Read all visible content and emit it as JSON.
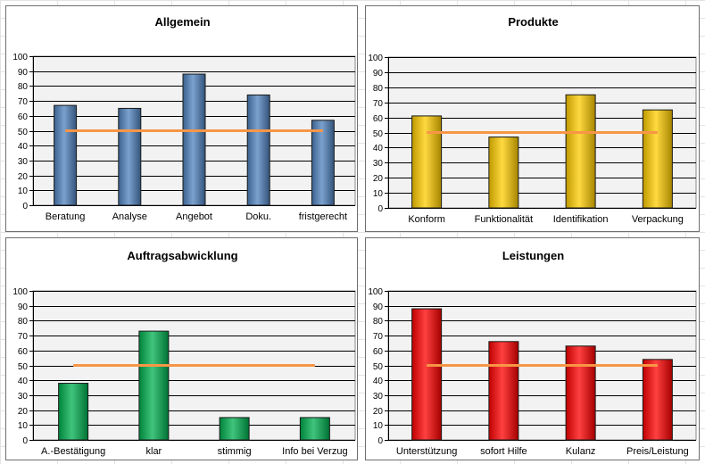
{
  "colors": {
    "blue": "#4f81bd",
    "yellow": "#ffcc00",
    "green": "#00b050",
    "red": "#ff0000",
    "target_line": "#f79646",
    "plot_background": "#f2f2f2"
  },
  "chart_data": [
    {
      "type": "bar",
      "title": "Allgemein",
      "categories": [
        "Beratung",
        "Analyse",
        "Angebot",
        "Doku.",
        "fristgerecht"
      ],
      "values": [
        67,
        65,
        88,
        74,
        57
      ],
      "target": 50,
      "ylim": [
        0,
        100
      ],
      "yticks": [
        0,
        10,
        20,
        30,
        40,
        50,
        60,
        70,
        80,
        90,
        100
      ],
      "color": "blue",
      "grid": true
    },
    {
      "type": "bar",
      "title": "Produkte",
      "categories": [
        "Konform",
        "Funktionalität",
        "Identifikation",
        "Verpackung"
      ],
      "values": [
        61,
        47,
        75,
        65
      ],
      "target": 50,
      "ylim": [
        0,
        100
      ],
      "yticks": [
        0,
        10,
        20,
        30,
        40,
        50,
        60,
        70,
        80,
        90,
        100
      ],
      "color": "yellow",
      "grid": true
    },
    {
      "type": "bar",
      "title": "Auftragsabwicklung",
      "categories": [
        "A.-Bestätigung",
        "klar",
        "stimmig",
        "Info bei Verzug"
      ],
      "values": [
        38,
        73,
        15,
        15
      ],
      "target": 50,
      "ylim": [
        0,
        100
      ],
      "yticks": [
        0,
        10,
        20,
        30,
        40,
        50,
        60,
        70,
        80,
        90,
        100
      ],
      "color": "green",
      "grid": true
    },
    {
      "type": "bar",
      "title": "Leistungen",
      "categories": [
        "Unterstützung",
        "sofort Hilfe",
        "Kulanz",
        "Preis/Leistung"
      ],
      "values": [
        88,
        66,
        63,
        54
      ],
      "target": 50,
      "ylim": [
        0,
        100
      ],
      "yticks": [
        0,
        10,
        20,
        30,
        40,
        50,
        60,
        70,
        80,
        90,
        100
      ],
      "color": "red",
      "grid": true
    }
  ]
}
